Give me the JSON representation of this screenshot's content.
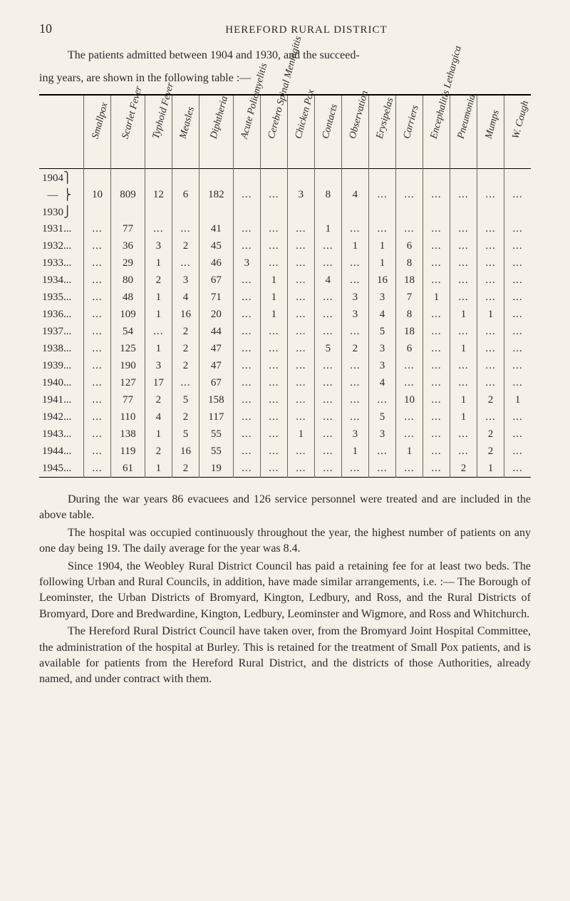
{
  "page_number": "10",
  "header_title": "HEREFORD RURAL DISTRICT",
  "intro_line1": "The patients admitted between 1904 and 1930, and the succeed-",
  "intro_line2": "ing years, are shown in the following table :—",
  "table": {
    "columns": [
      "",
      "Smallpox",
      "Scarlet Fever",
      "Typhoid Fever",
      "Measles",
      "Diphtheria",
      "Acute Poliomyelitis",
      "Cerebro Spinal Meningitis",
      "Chicken Pox",
      "Contacts",
      "Observation",
      "Erysipelas",
      "Carriers",
      "Encephalitis Lethargica",
      "Pneumonia",
      "Mumps",
      "W. Cough"
    ],
    "rows": [
      {
        "year": "1904⎫",
        "cells": [
          "",
          "",
          "",
          "",
          "",
          "",
          "",
          "",
          "",
          "",
          "",
          "",
          "",
          "",
          "",
          ""
        ]
      },
      {
        "year": "  —  ⎬",
        "cells": [
          "10",
          "809",
          "12",
          "6",
          "182",
          "...",
          "...",
          "3",
          "8",
          "4",
          "...",
          "...",
          "...",
          "...",
          "...",
          "..."
        ]
      },
      {
        "year": "1930⎭",
        "cells": [
          "",
          "",
          "",
          "",
          "",
          "",
          "",
          "",
          "",
          "",
          "",
          "",
          "",
          "",
          "",
          ""
        ]
      },
      {
        "year": "1931...",
        "cells": [
          "...",
          "77",
          "...",
          "...",
          "41",
          "...",
          "...",
          "...",
          "1",
          "...",
          "...",
          "...",
          "...",
          "...",
          "...",
          "..."
        ]
      },
      {
        "year": "1932...",
        "cells": [
          "...",
          "36",
          "3",
          "2",
          "45",
          "...",
          "...",
          "...",
          "...",
          "1",
          "1",
          "6",
          "...",
          "...",
          "...",
          "..."
        ]
      },
      {
        "year": "1933...",
        "cells": [
          "...",
          "29",
          "1",
          "...",
          "46",
          "3",
          "...",
          "...",
          "...",
          "...",
          "1",
          "8",
          "...",
          "...",
          "...",
          "..."
        ]
      },
      {
        "year": "1934...",
        "cells": [
          "...",
          "80",
          "2",
          "3",
          "67",
          "...",
          "1",
          "...",
          "4",
          "...",
          "16",
          "18",
          "...",
          "...",
          "...",
          "..."
        ]
      },
      {
        "year": "1935...",
        "cells": [
          "...",
          "48",
          "1",
          "4",
          "71",
          "...",
          "1",
          "...",
          "...",
          "3",
          "3",
          "7",
          "1",
          "...",
          "...",
          "..."
        ]
      },
      {
        "year": "1936...",
        "cells": [
          "...",
          "109",
          "1",
          "16",
          "20",
          "...",
          "1",
          "...",
          "...",
          "3",
          "4",
          "8",
          "...",
          "1",
          "1",
          "..."
        ]
      },
      {
        "year": "1937...",
        "cells": [
          "...",
          "54",
          "...",
          "2",
          "44",
          "...",
          "...",
          "...",
          "...",
          "...",
          "5",
          "18",
          "...",
          "...",
          "...",
          "..."
        ]
      },
      {
        "year": "1938...",
        "cells": [
          "...",
          "125",
          "1",
          "2",
          "47",
          "...",
          "...",
          "...",
          "5",
          "2",
          "3",
          "6",
          "...",
          "1",
          "...",
          "..."
        ]
      },
      {
        "year": "1939...",
        "cells": [
          "...",
          "190",
          "3",
          "2",
          "47",
          "...",
          "...",
          "...",
          "...",
          "...",
          "3",
          "...",
          "...",
          "...",
          "...",
          "..."
        ]
      },
      {
        "year": "1940...",
        "cells": [
          "...",
          "127",
          "17",
          "...",
          "67",
          "...",
          "...",
          "...",
          "...",
          "...",
          "4",
          "...",
          "...",
          "...",
          "...",
          "..."
        ]
      },
      {
        "year": "1941...",
        "cells": [
          "...",
          "77",
          "2",
          "5",
          "158",
          "...",
          "...",
          "...",
          "...",
          "...",
          "...",
          "10",
          "...",
          "1",
          "2",
          "1"
        ]
      },
      {
        "year": "1942...",
        "cells": [
          "...",
          "110",
          "4",
          "2",
          "117",
          "...",
          "...",
          "...",
          "...",
          "...",
          "5",
          "...",
          "...",
          "1",
          "...",
          "..."
        ]
      },
      {
        "year": "1943...",
        "cells": [
          "...",
          "138",
          "1",
          "5",
          "55",
          "...",
          "...",
          "1",
          "...",
          "3",
          "3",
          "...",
          "...",
          "...",
          "2",
          "..."
        ]
      },
      {
        "year": "1944...",
        "cells": [
          "...",
          "119",
          "2",
          "16",
          "55",
          "...",
          "...",
          "...",
          "...",
          "1",
          "...",
          "1",
          "...",
          "...",
          "2",
          "..."
        ]
      },
      {
        "year": "1945...",
        "cells": [
          "...",
          "61",
          "1",
          "2",
          "19",
          "...",
          "...",
          "...",
          "...",
          "...",
          "...",
          "...",
          "...",
          "2",
          "1",
          "..."
        ]
      }
    ]
  },
  "body": {
    "p1": "During the war years 86 evacuees and 126 service personnel were treated and are included in the above table.",
    "p2": "The hospital was occupied continuously throughout the year, the highest number of patients on any one day being 19. The daily average for the year was 8.4.",
    "p3": "Since 1904, the Weobley Rural District Council has paid a retaining fee for at least two beds. The following Urban and Rural Councils, in addition, have made similar arrangements, i.e. :— The Borough of Leominster, the Urban Districts of Bromyard, Kington, Ledbury, and Ross, and the Rural Districts of Bromyard, Dore and Bredwardine, Kington, Ledbury, Leominster and Wigmore, and Ross and Whitchurch.",
    "p4": "The Hereford Rural District Council have taken over, from the Bromyard Joint Hospital Committee, the administration of the hospital at Burley. This is retained for the treatment of Small Pox patients, and is available for patients from the Hereford Rural District, and the districts of those Authorities, already named, and under contract with them."
  }
}
